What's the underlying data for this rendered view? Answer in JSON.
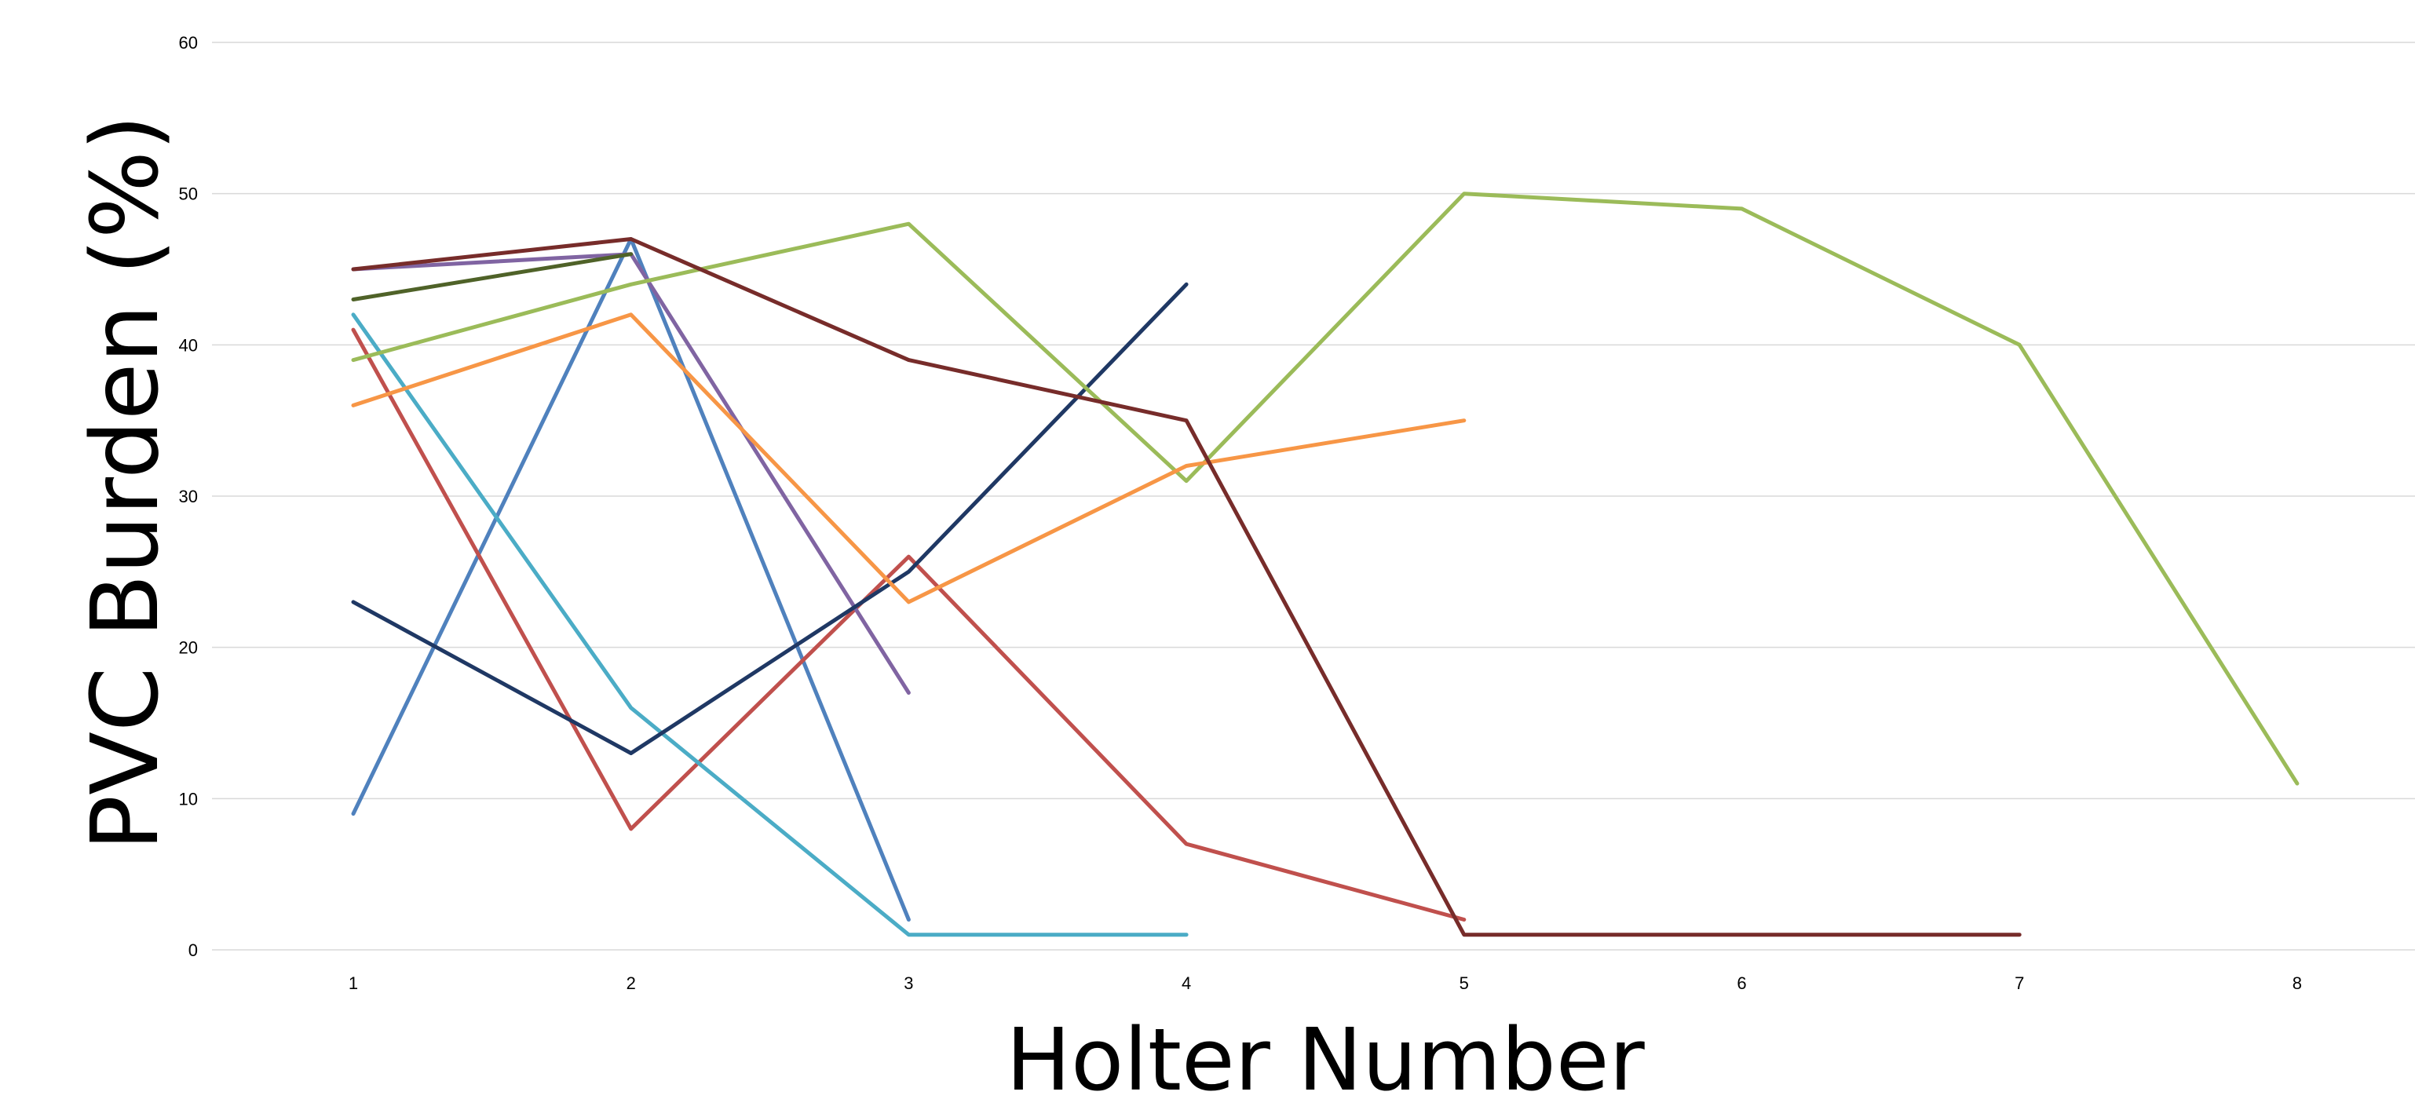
{
  "chart_data": {
    "type": "line",
    "title": "",
    "xlabel": "Holter Number",
    "ylabel": "PVC Burden (%)",
    "x": [
      1,
      2,
      3,
      4,
      5,
      6,
      7,
      8
    ],
    "ylim": [
      0,
      60
    ],
    "yticks": [
      0,
      10,
      20,
      30,
      40,
      50,
      60
    ],
    "grid": true,
    "legend": "none",
    "series": [
      {
        "color": "#4F81BD",
        "points": [
          [
            1,
            9
          ],
          [
            2,
            47
          ],
          [
            3,
            2
          ]
        ]
      },
      {
        "color": "#C0504D",
        "points": [
          [
            1,
            41
          ],
          [
            2,
            8
          ],
          [
            3,
            26
          ],
          [
            4,
            7
          ],
          [
            5,
            2
          ]
        ]
      },
      {
        "color": "#4BACC6",
        "points": [
          [
            1,
            42
          ],
          [
            2,
            16
          ],
          [
            3,
            1
          ],
          [
            4,
            1
          ]
        ]
      },
      {
        "color": "#8064A2",
        "points": [
          [
            1,
            45
          ],
          [
            2,
            46
          ],
          [
            3,
            17
          ]
        ]
      },
      {
        "color": "#1F3864",
        "points": [
          [
            1,
            23
          ],
          [
            2,
            13
          ],
          [
            3,
            25
          ],
          [
            4,
            44
          ]
        ]
      },
      {
        "color": "#4F6228",
        "points": [
          [
            1,
            43
          ],
          [
            2,
            46
          ]
        ]
      },
      {
        "color": "#9BBB59",
        "points": [
          [
            1,
            39
          ],
          [
            2,
            44
          ],
          [
            3,
            48
          ],
          [
            4,
            31
          ],
          [
            5,
            50
          ],
          [
            6,
            49
          ],
          [
            7,
            40
          ],
          [
            8,
            11
          ]
        ]
      },
      {
        "color": "#F79646",
        "points": [
          [
            1,
            36
          ],
          [
            2,
            42
          ],
          [
            3,
            23
          ],
          [
            4,
            32
          ],
          [
            5,
            35
          ]
        ]
      },
      {
        "color": "#772C2A",
        "points": [
          [
            1,
            45
          ],
          [
            2,
            47
          ],
          [
            3,
            39
          ],
          [
            4,
            35
          ],
          [
            5,
            1
          ],
          [
            6,
            1
          ],
          [
            7,
            1
          ]
        ]
      }
    ]
  }
}
